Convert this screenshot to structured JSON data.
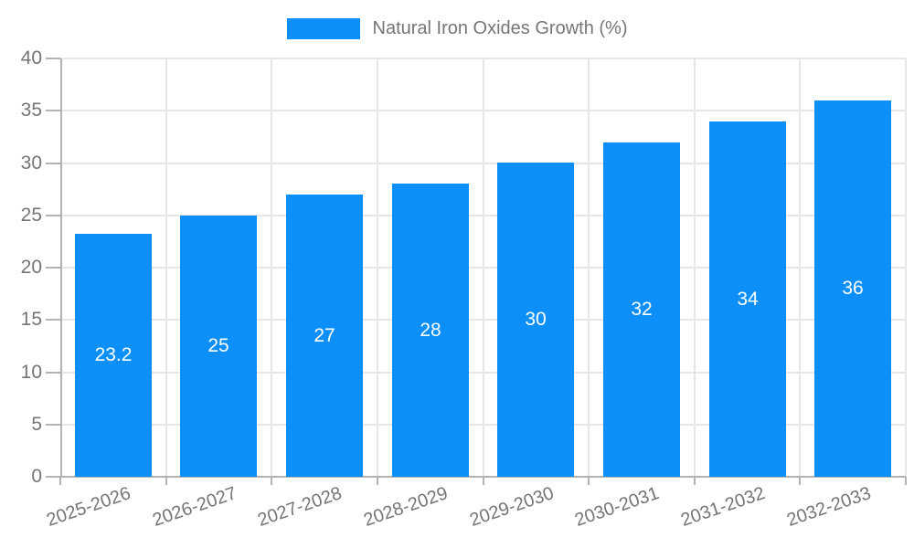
{
  "legend": {
    "label": "Natural Iron Oxides Growth (%)"
  },
  "chart_data": {
    "type": "bar",
    "title": "",
    "series_name": "Natural Iron Oxides Growth (%)",
    "categories": [
      "2025-2026",
      "2026-2027",
      "2027-2028",
      "2028-2029",
      "2029-2030",
      "2030-2031",
      "2031-2032",
      "2032-2033"
    ],
    "values": [
      23.2,
      25,
      27,
      28,
      30,
      32,
      34,
      36
    ],
    "value_labels": [
      "23.2",
      "25",
      "27",
      "28",
      "30",
      "32",
      "34",
      "36"
    ],
    "xlabel": "",
    "ylabel": "",
    "ylim": [
      0,
      40
    ],
    "ytick_step": 5,
    "ytick_labels": [
      "0",
      "5",
      "10",
      "15",
      "20",
      "25",
      "30",
      "35",
      "40"
    ],
    "grid": true,
    "legend_position": "top-center",
    "colors": {
      "bar": "#0d8ff9",
      "value_label": "#ffffff",
      "axis": "#b3b3b3",
      "gridline": "#e6e6e6",
      "tick_text": "#757575"
    }
  }
}
